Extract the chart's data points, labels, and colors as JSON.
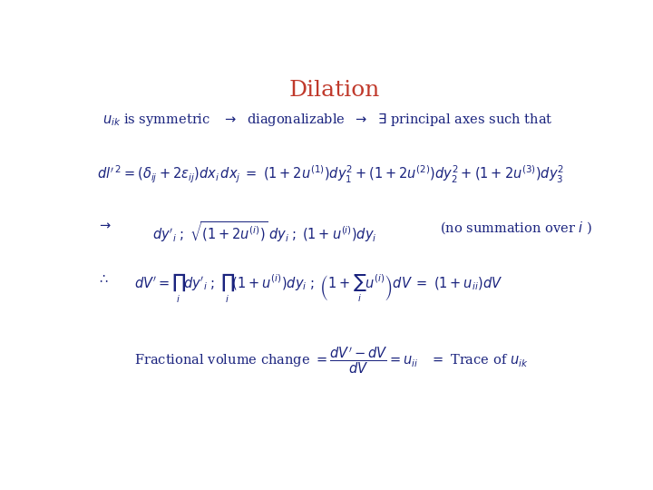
{
  "title": "Dilation",
  "title_color": "#c0392b",
  "title_fontsize": 18,
  "background_color": "#ffffff",
  "text_color": "#1a237e",
  "math_fontsize": 10.5
}
